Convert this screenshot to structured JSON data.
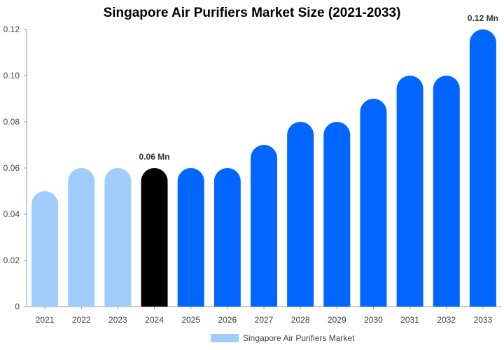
{
  "chart_data": {
    "type": "bar",
    "title": "Singapore Air Purifiers Market Size (2021-2033)",
    "xlabel": "",
    "ylabel": "",
    "categories": [
      "2021",
      "2022",
      "2023",
      "2024",
      "2025",
      "2026",
      "2027",
      "2028",
      "2029",
      "2030",
      "2031",
      "2032",
      "2033"
    ],
    "series": [
      {
        "name": "Singapore Air Purifiers Market",
        "values": [
          0.05,
          0.06,
          0.06,
          0.06,
          0.06,
          0.06,
          0.07,
          0.08,
          0.08,
          0.09,
          0.1,
          0.1,
          0.12
        ]
      }
    ],
    "ylim": [
      0,
      0.12
    ],
    "yticks": [
      "0",
      "0.02",
      "0.04",
      "0.06",
      "0.08",
      "0.10",
      "0.12"
    ],
    "ytick_values": [
      0,
      0.02,
      0.04,
      0.06,
      0.08,
      0.1,
      0.12
    ],
    "data_labels": [
      {
        "category": "2024",
        "text": "0.06 Mn"
      },
      {
        "category": "2033",
        "text": "0.12 Mn"
      }
    ],
    "bar_colors": {
      "historical": "#a0cdfc",
      "current": "#000000",
      "forecast": "#0066ff"
    },
    "historical_categories": [
      "2021",
      "2022",
      "2023"
    ],
    "current_category": "2024",
    "grid": false,
    "legend": {
      "placement": "bottom",
      "label": "Singapore Air Purifiers Market",
      "color": "#a0cdfc"
    }
  }
}
